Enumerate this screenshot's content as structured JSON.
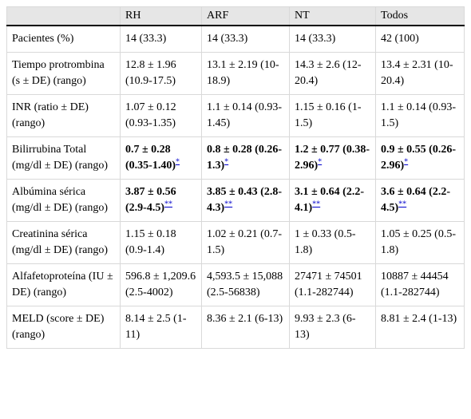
{
  "table": {
    "headers": [
      "",
      "RH",
      "ARF",
      "NT",
      "Todos"
    ],
    "rows": [
      {
        "label": "Pacientes (%)",
        "cells": [
          {
            "text": "14 (33.3)",
            "bold": false,
            "note": ""
          },
          {
            "text": "14 (33.3)",
            "bold": false,
            "note": ""
          },
          {
            "text": "14 (33.3)",
            "bold": false,
            "note": ""
          },
          {
            "text": "42 (100)",
            "bold": false,
            "note": ""
          }
        ]
      },
      {
        "label": "Tiempo protrombina (s ± DE) (rango)",
        "cells": [
          {
            "text": "12.8 ± 1.96 (10.9-17.5)",
            "bold": false,
            "note": ""
          },
          {
            "text": "13.1 ± 2.19 (10-18.9)",
            "bold": false,
            "note": ""
          },
          {
            "text": "14.3 ± 2.6 (12-20.4)",
            "bold": false,
            "note": ""
          },
          {
            "text": "13.4 ± 2.31 (10-20.4)",
            "bold": false,
            "note": ""
          }
        ]
      },
      {
        "label": "INR (ratio ± DE) (rango)",
        "cells": [
          {
            "text": "1.07 ± 0.12 (0.93-1.35)",
            "bold": false,
            "note": ""
          },
          {
            "text": "1.1 ± 0.14 (0.93-1.45)",
            "bold": false,
            "note": ""
          },
          {
            "text": "1.15 ± 0.16 (1-1.5)",
            "bold": false,
            "note": ""
          },
          {
            "text": "1.1 ± 0.14 (0.93-1.5)",
            "bold": false,
            "note": ""
          }
        ]
      },
      {
        "label": "Bilirrubina Total (mg/dl ± DE) (rango)",
        "cells": [
          {
            "text": "0.7 ± 0.28 (0.35-1.40)",
            "bold": true,
            "note": "*"
          },
          {
            "text": "0.8 ± 0.28 (0.26-1.3)",
            "bold": true,
            "note": "*"
          },
          {
            "text": "1.2 ± 0.77 (0.38-2.96)",
            "bold": true,
            "note": "*"
          },
          {
            "text": "0.9 ± 0.55 (0.26-2.96)",
            "bold": true,
            "note": "*"
          }
        ]
      },
      {
        "label": "Albúmina sérica (mg/dl ± DE) (rango)",
        "cells": [
          {
            "text": "3.87 ± 0.56 (2.9-4.5)",
            "bold": true,
            "note": "**"
          },
          {
            "text": "3.85 ± 0.43 (2.8-4.3)",
            "bold": true,
            "note": "**"
          },
          {
            "text": "3.1 ± 0.64 (2.2-4.1)",
            "bold": true,
            "note": "**"
          },
          {
            "text": "3.6 ± 0.64 (2.2-4.5)",
            "bold": true,
            "note": "**"
          }
        ]
      },
      {
        "label": "Creatinina sérica (mg/dl ± DE) (rango)",
        "cells": [
          {
            "text": "1.15 ± 0.18 (0.9-1.4)",
            "bold": false,
            "note": ""
          },
          {
            "text": "1.02 ± 0.21 (0.7-1.5)",
            "bold": false,
            "note": ""
          },
          {
            "text": "1 ± 0.33 (0.5-1.8)",
            "bold": false,
            "note": ""
          },
          {
            "text": "1.05 ± 0.25 (0.5-1.8)",
            "bold": false,
            "note": ""
          }
        ]
      },
      {
        "label": "Alfafetoproteína (IU ± DE) (rango)",
        "cells": [
          {
            "text": "596.8 ± 1,209.6 (2.5-4002)",
            "bold": false,
            "note": ""
          },
          {
            "text": "4,593.5 ± 15,088 (2.5-56838)",
            "bold": false,
            "note": ""
          },
          {
            "text": "27471 ± 74501 (1.1-282744)",
            "bold": false,
            "note": ""
          },
          {
            "text": "10887 ± 44454 (1.1-282744)",
            "bold": false,
            "note": ""
          }
        ]
      },
      {
        "label": "MELD (score ± DE) (rango)",
        "cells": [
          {
            "text": "8.14 ± 2.5 (1-11)",
            "bold": false,
            "note": ""
          },
          {
            "text": "8.36 ± 2.1 (6-13)",
            "bold": false,
            "note": ""
          },
          {
            "text": "9.93 ± 2.3 (6-13)",
            "bold": false,
            "note": ""
          },
          {
            "text": "8.81 ± 2.4 (1-13)",
            "bold": false,
            "note": ""
          }
        ]
      }
    ]
  }
}
